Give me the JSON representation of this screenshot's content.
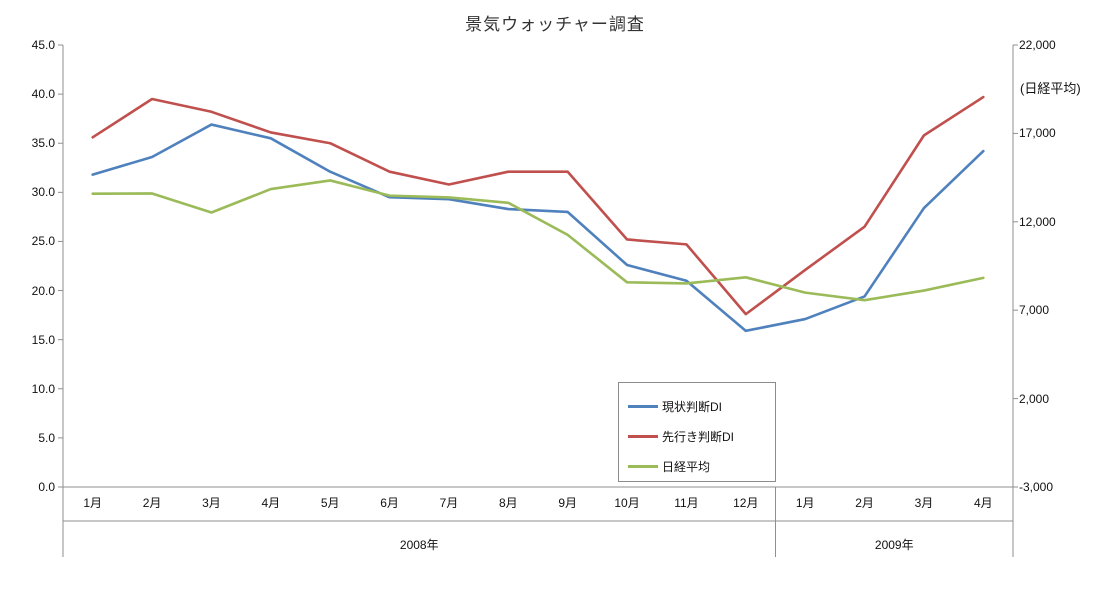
{
  "title": "景気ウォッチャー調査",
  "left_axis": {
    "tick_values": [
      45,
      40,
      35,
      30,
      25,
      20,
      15,
      10,
      5,
      0
    ],
    "tick_labels": [
      "45.0",
      "40.0",
      "35.0",
      "30.0",
      "25.0",
      "20.0",
      "15.0",
      "10.0",
      "5.0",
      "0.0"
    ]
  },
  "right_axis": {
    "title": "(日経平均)",
    "tick_values": [
      22000,
      17000,
      12000,
      7000,
      2000,
      -3000
    ],
    "tick_labels": [
      "22,000",
      "17,000",
      "12,000",
      "7,000",
      "2,000",
      "-3,000"
    ]
  },
  "chart_data": {
    "type": "line",
    "categories": [
      "1月",
      "2月",
      "3月",
      "4月",
      "5月",
      "6月",
      "7月",
      "8月",
      "9月",
      "10月",
      "11月",
      "12月",
      "1月",
      "2月",
      "3月",
      "4月"
    ],
    "category_groups": [
      {
        "label": "2008年",
        "span": 12
      },
      {
        "label": "2009年",
        "span": 4
      }
    ],
    "left_ylim": [
      0,
      45
    ],
    "right_ylim": [
      -3000,
      22000
    ],
    "grid": false,
    "legend_position": "inside-bottom-center-box",
    "series": [
      {
        "name": "現状判断DI",
        "axis": "left",
        "color": "#4F81BD",
        "values": [
          31.8,
          33.6,
          36.9,
          35.5,
          32.1,
          29.5,
          29.3,
          28.3,
          28.0,
          22.6,
          21.0,
          15.9,
          17.1,
          19.4,
          28.4,
          34.2
        ]
      },
      {
        "name": "先行き判断DI",
        "axis": "left",
        "color": "#C0504D",
        "values": [
          35.6,
          39.5,
          38.2,
          36.1,
          35.0,
          32.1,
          30.8,
          32.1,
          32.1,
          25.2,
          24.7,
          17.6,
          22.1,
          26.5,
          35.8,
          39.7
        ]
      },
      {
        "name": "日経平均",
        "axis": "right",
        "color": "#9BBB59",
        "values": [
          13592,
          13603,
          12526,
          13850,
          14339,
          13481,
          13377,
          13073,
          11260,
          8577,
          8512,
          8860,
          7994,
          7568,
          8110,
          8828
        ]
      }
    ]
  }
}
